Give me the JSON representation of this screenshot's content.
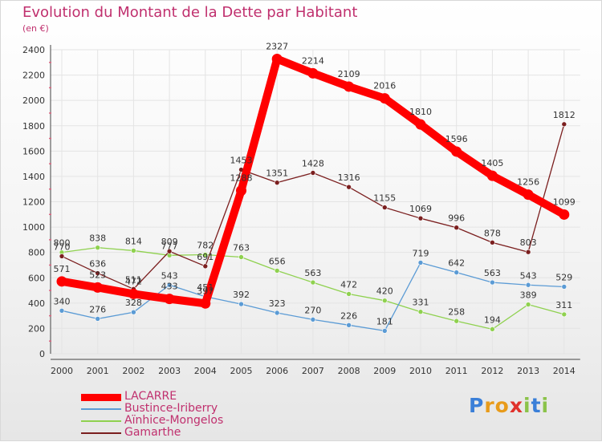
{
  "chart_data": {
    "type": "line",
    "title": "Evolution du Montant de la Dette par Habitant",
    "subtitle": "(en €)",
    "x": [
      "2000",
      "2001",
      "2002",
      "2003",
      "2004",
      "2005",
      "2006",
      "2007",
      "2008",
      "2009",
      "2010",
      "2011",
      "2012",
      "2013",
      "2014"
    ],
    "ylim": [
      0,
      2400
    ],
    "yticks": [
      0,
      200,
      400,
      600,
      800,
      1000,
      1200,
      1400,
      1600,
      1800,
      2000,
      2200,
      2400
    ],
    "grid": true,
    "legend_position": "bottom-left",
    "series": [
      {
        "name": "LACARRE",
        "color": "#ff0000",
        "values": [
          571,
          523,
          472,
          433,
          397,
          1288,
          2327,
          2214,
          2109,
          2016,
          1810,
          1596,
          1405,
          1256,
          1099
        ]
      },
      {
        "name": "Bustince-Iriberry",
        "color": "#5b9bd5",
        "values": [
          340,
          276,
          328,
          543,
          451,
          392,
          323,
          270,
          226,
          181,
          719,
          642,
          563,
          543,
          529
        ]
      },
      {
        "name": "Aïnhice-Mongelos",
        "color": "#8fd14f",
        "values": [
          800,
          838,
          814,
          777,
          782,
          763,
          656,
          563,
          472,
          420,
          331,
          258,
          194,
          389,
          311
        ]
      },
      {
        "name": "Gamarthe",
        "color": "#7b1f1f",
        "values": [
          770,
          636,
          511,
          809,
          691,
          1453,
          1351,
          1428,
          1316,
          1155,
          1069,
          996,
          878,
          803,
          1812
        ]
      }
    ]
  },
  "logo": {
    "letters": [
      "P",
      "r",
      "o",
      "x",
      "i",
      "t",
      "i"
    ],
    "colors": [
      "#3a7fd8",
      "#e89b1a",
      "#e89b1a",
      "#e0312b",
      "#8bc34a",
      "#3a7fd8",
      "#8bc34a"
    ]
  }
}
